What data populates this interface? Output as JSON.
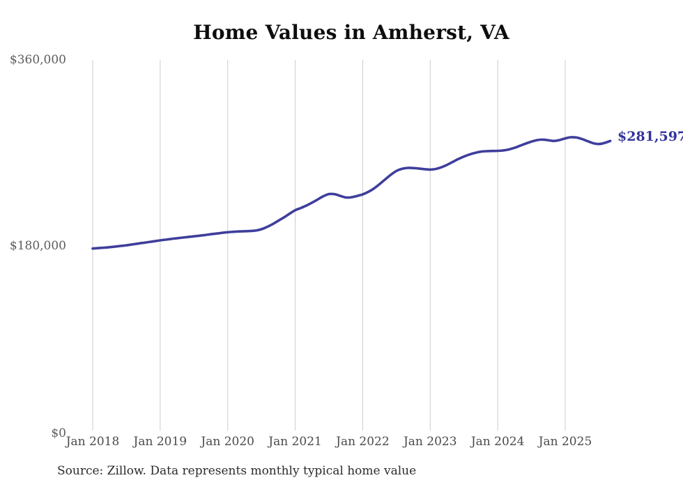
{
  "title": "Home Values in Amherst, VA",
  "source": "Source: Zillow. Data represents monthly typical home value",
  "annotation": {
    "end_value_label": "$281,597"
  },
  "colors": {
    "line": "#3e3e9c",
    "annotation_text": "#33339b",
    "gridline": "#cccccc",
    "y_axis_text": "#5c5c5c",
    "x_axis_text": "#4a4a4a",
    "title_text": "#0d0d0d",
    "source_text": "#2b2b2b",
    "background": "#ffffff"
  },
  "chart_data": {
    "type": "line",
    "title": "Home Values in Amherst, VA",
    "xlabel": "",
    "ylabel": "",
    "ylim": [
      0,
      360000
    ],
    "grid": "vertical-only",
    "legend": "none",
    "y_tick_labels": [
      "$0",
      "$180,000",
      "$360,000"
    ],
    "y_tick_values": [
      0,
      180000,
      360000
    ],
    "x_tick_labels": [
      "Jan 2018",
      "Jan 2019",
      "Jan 2020",
      "Jan 2021",
      "Jan 2022",
      "Jan 2023",
      "Jan 2024",
      "Jan 2025"
    ],
    "x_tick_month_indices": [
      0,
      12,
      24,
      36,
      48,
      60,
      72,
      84
    ],
    "series": [
      {
        "name": "Typical home value",
        "unit": "USD",
        "start_month": "2018-01",
        "end_month": "2025-09",
        "end_value": 281597,
        "values": [
          177500,
          177900,
          178300,
          178800,
          179400,
          180000,
          180600,
          181400,
          182200,
          183000,
          183800,
          184600,
          185400,
          186100,
          186800,
          187500,
          188100,
          188700,
          189300,
          189900,
          190600,
          191300,
          192000,
          192700,
          193300,
          193700,
          194000,
          194200,
          194400,
          194900,
          196200,
          198400,
          201200,
          204400,
          207600,
          211200,
          214600,
          216700,
          219100,
          221900,
          225000,
          228100,
          230200,
          230100,
          228500,
          226900,
          227100,
          228400,
          229900,
          232300,
          235600,
          239800,
          244400,
          248900,
          252600,
          254700,
          255500,
          255400,
          254900,
          254300,
          253900,
          254500,
          256100,
          258500,
          261300,
          264100,
          266500,
          268500,
          270100,
          271200,
          271700,
          271900,
          272000,
          272400,
          273400,
          275000,
          277000,
          279100,
          281000,
          282400,
          282900,
          282300,
          281600,
          282500,
          284100,
          285200,
          284900,
          283400,
          281300,
          279400,
          278600,
          279700,
          281597
        ]
      }
    ]
  }
}
